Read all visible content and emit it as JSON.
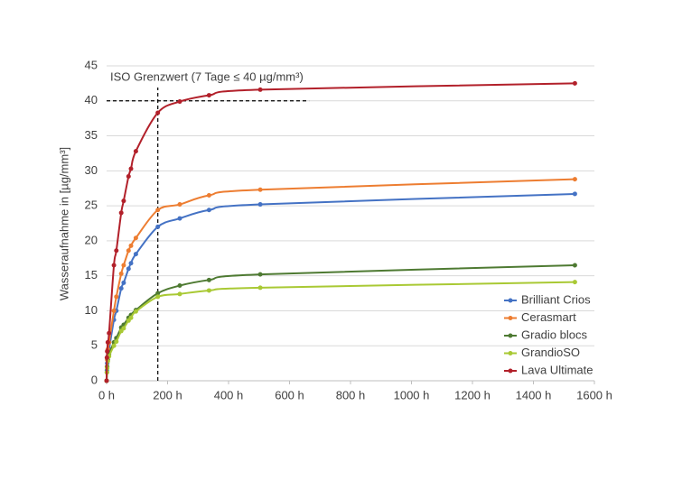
{
  "chart_data": {
    "type": "line",
    "y_label": "Wasseraufnahme in [µg/mm³]",
    "annotation": "ISO Grenzwert (7 Tage ≤ 40 µg/mm³)",
    "reference_lines": {
      "y": 40,
      "x": 168
    },
    "x": [
      0,
      1,
      2,
      4,
      8,
      24,
      32,
      48,
      56,
      72,
      80,
      96,
      168,
      240,
      336,
      504,
      1536
    ],
    "series": [
      {
        "name": "Brilliant Crios",
        "color": "#4472c4",
        "values": [
          0,
          1.5,
          2.5,
          3.5,
          4.5,
          8.7,
          10,
          13.2,
          14,
          16,
          16.8,
          18.1,
          22,
          23.2,
          24.4,
          25.2,
          26.7
        ]
      },
      {
        "name": "Cerasmart",
        "color": "#ed7d31",
        "values": [
          0,
          2,
          3,
          4.5,
          5.5,
          10,
          12,
          15.3,
          16.5,
          18.6,
          19.3,
          20.4,
          24.4,
          25.2,
          26.5,
          27.3,
          28.8
        ]
      },
      {
        "name": "Gradio blocs",
        "color": "#4e7a32",
        "values": [
          0,
          1.2,
          2,
          3,
          3.8,
          5.5,
          6.1,
          7.6,
          8,
          9,
          9.4,
          10.1,
          12.5,
          13.6,
          14.4,
          15.2,
          16.5
        ]
      },
      {
        "name": "GrandioSO",
        "color": "#a9c934",
        "values": [
          0,
          1.2,
          1.8,
          2.8,
          3.5,
          5,
          5.6,
          7.1,
          7.5,
          8.6,
          9,
          9.9,
          12,
          12.4,
          12.9,
          13.3,
          14.1
        ]
      },
      {
        "name": "Lava Ultimate",
        "color": "#b2202a",
        "values": [
          0,
          3.3,
          4.2,
          5.5,
          6.8,
          16.5,
          18.6,
          24,
          25.7,
          29.2,
          30.3,
          32.8,
          38.3,
          39.9,
          40.8,
          41.6,
          42.5
        ]
      }
    ],
    "xlim": [
      0,
      1600
    ],
    "xticks": [
      {
        "value": 0,
        "label": "0 h"
      },
      {
        "value": 200,
        "label": "200 h"
      },
      {
        "value": 400,
        "label": "400 h"
      },
      {
        "value": 600,
        "label": "600 h"
      },
      {
        "value": 800,
        "label": "800 h"
      },
      {
        "value": 1000,
        "label": "1000 h"
      },
      {
        "value": 1200,
        "label": "1200 h"
      },
      {
        "value": 1400,
        "label": "1400 h"
      },
      {
        "value": 1600,
        "label": "1600 h"
      }
    ],
    "ylim": [
      0,
      45
    ],
    "yticks": [
      0,
      5,
      10,
      15,
      20,
      25,
      30,
      35,
      40,
      45
    ],
    "grid": true,
    "legend": "right"
  }
}
